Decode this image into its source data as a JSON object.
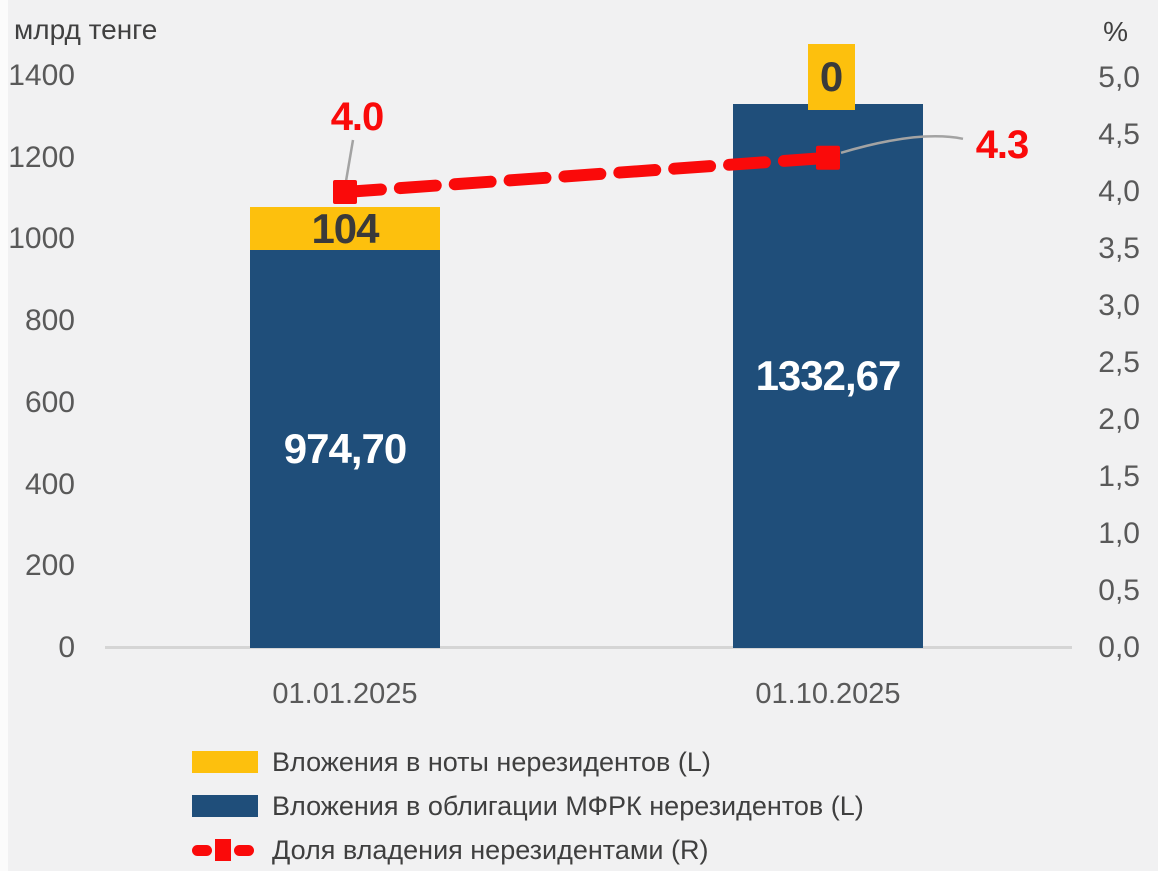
{
  "chart_data": {
    "type": "bar",
    "stacked": true,
    "dual_axis": true,
    "grid": false,
    "legend_position": "bottom",
    "categories": [
      "01.01.2025",
      "01.10.2025"
    ],
    "series": [
      {
        "name": "Вложения в ноты нерезидентов (L)",
        "type": "bar",
        "axis": "left",
        "color": "#fdc00d",
        "values": [
          104,
          0
        ],
        "labels": [
          "104",
          "0"
        ]
      },
      {
        "name": "Вложения в облигации МФРК нерезидентов (L)",
        "type": "bar",
        "axis": "left",
        "color": "#1f4e7a",
        "values": [
          974.7,
          1332.67
        ],
        "labels": [
          "974,70",
          "1332,67"
        ]
      },
      {
        "name": "Доля владения нерезидентами (R)",
        "type": "line",
        "axis": "right",
        "color": "#fa0a0a",
        "dashed": true,
        "values": [
          4.0,
          4.3
        ],
        "labels": [
          "4.0",
          "4.3"
        ]
      }
    ],
    "left_axis": {
      "title": "млрд тенге",
      "min": 0,
      "max": 1400,
      "ticks": [
        "1400",
        "1200",
        "1000",
        "800",
        "600",
        "400",
        "200",
        "0"
      ]
    },
    "right_axis": {
      "title": "%",
      "min": 0,
      "max": 5,
      "ticks": [
        "5,0",
        "4,5",
        "4,0",
        "3,5",
        "3,0",
        "2,5",
        "2,0",
        "1,5",
        "1,0",
        "0,5",
        "0,0"
      ]
    }
  },
  "colors": {
    "background": "#f1f1f2",
    "bar_yellow": "#fdc00d",
    "bar_blue": "#1f4e7a",
    "line_red": "#fa0a0a",
    "axis_text": "#595959",
    "title_text": "#404040",
    "label_dark": "#3a3a3a",
    "label_white": "#ffffff",
    "axis_line": "#d5d5d5",
    "callout_gray": "#a3a3a3"
  }
}
